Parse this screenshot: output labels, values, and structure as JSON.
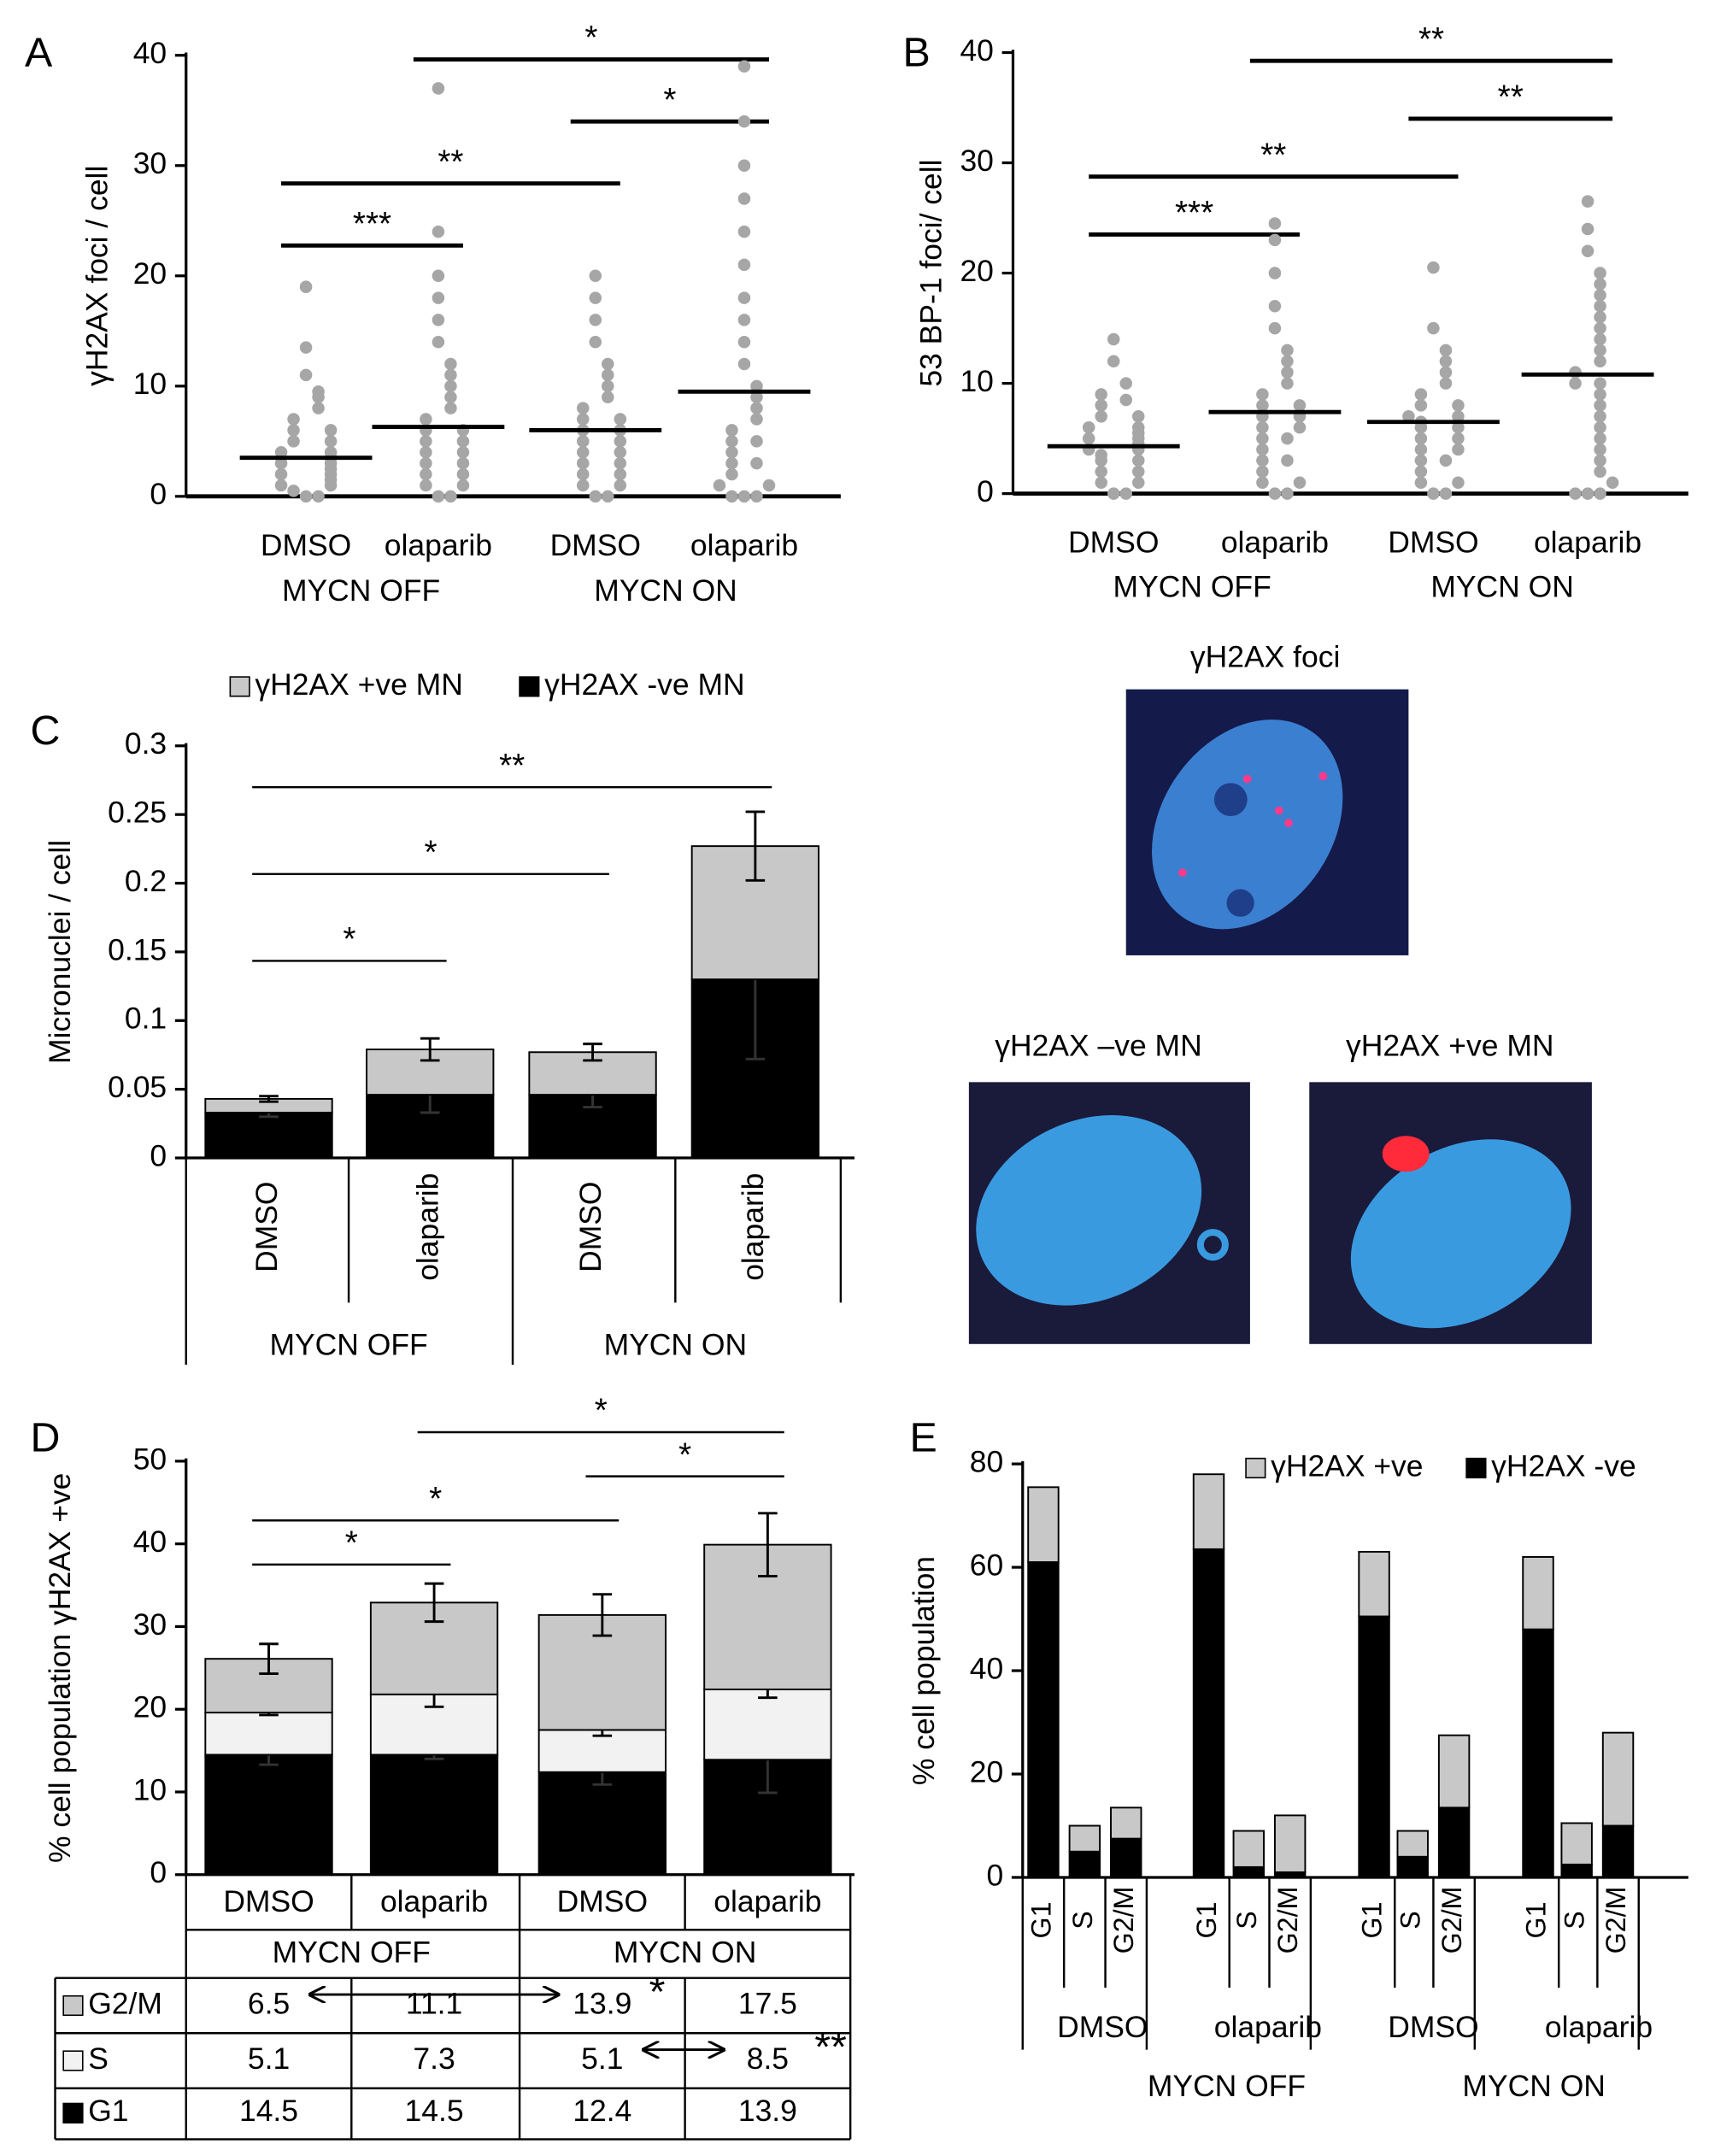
{
  "chart_data": [
    {
      "type": "dot",
      "panel": "A",
      "ylabel": "γH2AX foci / cell",
      "categories": [
        "DMSO",
        "olaparib",
        "DMSO",
        "olaparib"
      ],
      "groups": [
        "MYCN OFF",
        "MYCN ON"
      ],
      "color": "#a6a6a6",
      "ylim": [
        0,
        40
      ],
      "yticks": [
        0,
        10,
        20,
        30,
        40
      ],
      "values": [
        [
          0,
          0,
          0.5,
          1,
          1,
          1.5,
          2,
          2,
          2.5,
          3,
          3,
          3.5,
          4,
          4,
          5,
          5,
          6,
          6,
          7,
          8,
          9,
          9.5,
          11,
          13.5,
          19
        ],
        [
          0,
          0,
          1,
          1,
          2,
          2,
          3,
          3,
          4,
          4,
          5,
          5,
          6,
          6,
          7,
          8,
          9,
          10,
          11,
          12,
          14,
          16,
          18,
          20,
          24,
          37
        ],
        [
          0,
          0,
          1,
          1,
          2,
          2,
          3,
          3,
          4,
          4,
          5,
          5,
          6,
          6,
          7,
          7,
          8,
          9,
          10,
          11,
          12,
          14,
          16,
          18,
          20
        ],
        [
          0,
          0,
          0,
          1,
          1,
          2,
          3,
          3,
          4,
          5,
          5,
          6,
          7,
          8,
          9,
          10,
          12,
          14,
          16,
          18,
          21,
          24,
          27,
          30,
          34,
          39
        ]
      ],
      "means": [
        3.5,
        6.3,
        6.0,
        9.5
      ],
      "brackets": [
        {
          "from": 0,
          "to": 1,
          "label": "***"
        },
        {
          "from": 0,
          "to": 2,
          "label": "**"
        },
        {
          "from": 2,
          "to": 3,
          "label": "*"
        },
        {
          "from": 1,
          "to": 3,
          "label": "*"
        }
      ]
    },
    {
      "type": "dot",
      "panel": "B",
      "ylabel": "53 BP-1 foci/ cell",
      "categories": [
        "DMSO",
        "olaparib",
        "DMSO",
        "olaparib"
      ],
      "groups": [
        "MYCN OFF",
        "MYCN ON"
      ],
      "color": "#a6a6a6",
      "ylim": [
        0,
        40
      ],
      "yticks": [
        0,
        10,
        20,
        30,
        40
      ],
      "values": [
        [
          0,
          0,
          1,
          1,
          2,
          2,
          3,
          3,
          3.5,
          4,
          4,
          4.5,
          5,
          5,
          5.5,
          6,
          6,
          7,
          7,
          8,
          8.5,
          9,
          10,
          12,
          14
        ],
        [
          0,
          0,
          1,
          1,
          2,
          3,
          3,
          4,
          5,
          5,
          6,
          6,
          7,
          7,
          8,
          8,
          9,
          10,
          11,
          12,
          13,
          15,
          17,
          20,
          23,
          24.5
        ],
        [
          0,
          0,
          1,
          1,
          2,
          3,
          3,
          4,
          4,
          5,
          5,
          6,
          6,
          6.5,
          7,
          7,
          8,
          8,
          9,
          10,
          11,
          12,
          13,
          15,
          20.5
        ],
        [
          0,
          0,
          0,
          1,
          2,
          3,
          4,
          5,
          6,
          7,
          8,
          9,
          10,
          10,
          11,
          12,
          13,
          14,
          15,
          16,
          17,
          18,
          19,
          20,
          22,
          24,
          26.5
        ]
      ],
      "means": [
        4.3,
        7.4,
        6.5,
        10.8
      ],
      "brackets": [
        {
          "from": 0,
          "to": 1,
          "label": "***"
        },
        {
          "from": 0,
          "to": 2,
          "label": "**"
        },
        {
          "from": 2,
          "to": 3,
          "label": "**"
        },
        {
          "from": 1,
          "to": 3,
          "label": "**"
        }
      ]
    },
    {
      "type": "stacked_bar",
      "panel": "C",
      "ylabel": "Micronuclei / cell",
      "categories": [
        "DMSO",
        "olaparib",
        "DMSO",
        "olaparib"
      ],
      "groups": [
        "MYCN OFF",
        "MYCN ON"
      ],
      "ylim": [
        0,
        0.3
      ],
      "yticks": [
        0,
        0.05,
        0.1,
        0.15,
        0.2,
        0.25,
        0.3
      ],
      "series": [
        {
          "name": "γH2AX -ve MN",
          "color": "#000000",
          "values": [
            0.033,
            0.046,
            0.046,
            0.13
          ],
          "errors": [
            0.003,
            0.013,
            0.009,
            0.058
          ]
        },
        {
          "name": "γH2AX +ve MN",
          "color": "#c8c8c8",
          "values": [
            0.01,
            0.033,
            0.031,
            0.097
          ],
          "errors": [
            0.002,
            0.008,
            0.006,
            0.025
          ]
        }
      ],
      "brackets": [
        {
          "from": 0,
          "to": 1,
          "label": "*"
        },
        {
          "from": 0,
          "to": 2,
          "label": "*"
        },
        {
          "from": 0,
          "to": 3,
          "label": "**"
        }
      ]
    },
    {
      "type": "stacked_bar",
      "panel": "D",
      "ylabel": "% cell population γH2AX +ve",
      "categories": [
        "DMSO",
        "olaparib",
        "DMSO",
        "olaparib"
      ],
      "groups": [
        "MYCN OFF",
        "MYCN ON"
      ],
      "ylim": [
        0,
        50
      ],
      "yticks": [
        0,
        10,
        20,
        30,
        40,
        50
      ],
      "series": [
        {
          "name": "G1",
          "color": "#000000",
          "values": [
            14.5,
            14.5,
            12.4,
            13.9
          ],
          "errors": [
            1.2,
            0.5,
            1.5,
            4.0
          ]
        },
        {
          "name": "S",
          "color": "#f2f2f2",
          "values": [
            5.1,
            7.3,
            5.1,
            8.5
          ],
          "errors": [
            0.3,
            1.5,
            0.7,
            1.0
          ]
        },
        {
          "name": "G2/M",
          "color": "#c8c8c8",
          "values": [
            6.5,
            11.1,
            13.9,
            17.5
          ],
          "errors": [
            1.8,
            2.3,
            2.5,
            3.8
          ]
        }
      ],
      "brackets": [
        {
          "from": 0,
          "to": 1,
          "label": "*"
        },
        {
          "from": 0,
          "to": 2,
          "label": "*"
        },
        {
          "from": 2,
          "to": 3,
          "label": "*"
        },
        {
          "from": 1,
          "to": 3,
          "label": "*"
        }
      ],
      "table_arrows": [
        {
          "series": 2,
          "from": 0,
          "to": 2,
          "label": "*"
        },
        {
          "series": 1,
          "from": 2,
          "to": 3,
          "label": "**"
        }
      ]
    },
    {
      "type": "stacked_bar",
      "panel": "E",
      "ylabel": "% cell population",
      "categories": [
        "G1",
        "S",
        "G2/M",
        "G1",
        "S",
        "G2/M",
        "G1",
        "S",
        "G2/M",
        "G1",
        "S",
        "G2/M"
      ],
      "groups": [
        "DMSO",
        "olaparib",
        "DMSO",
        "olaparib"
      ],
      "supergroups": [
        "MYCN OFF",
        "MYCN ON"
      ],
      "ylim": [
        0,
        80
      ],
      "yticks": [
        0,
        20,
        40,
        60,
        80
      ],
      "series": [
        {
          "name": "γH2AX -ve",
          "color": "#000000",
          "values": [
            61,
            5,
            7.5,
            63.5,
            2,
            1,
            50.5,
            4,
            13.5,
            48,
            2.5,
            10
          ]
        },
        {
          "name": "γH2AX +ve",
          "color": "#c8c8c8",
          "values": [
            14.5,
            5,
            6,
            14.5,
            7,
            11,
            12.5,
            5,
            14,
            14,
            8,
            18
          ]
        }
      ]
    }
  ],
  "images": [
    {
      "caption": "γH2AX foci"
    },
    {
      "caption": "γH2AX –ve MN"
    },
    {
      "caption": "γH2AX +ve MN"
    }
  ]
}
